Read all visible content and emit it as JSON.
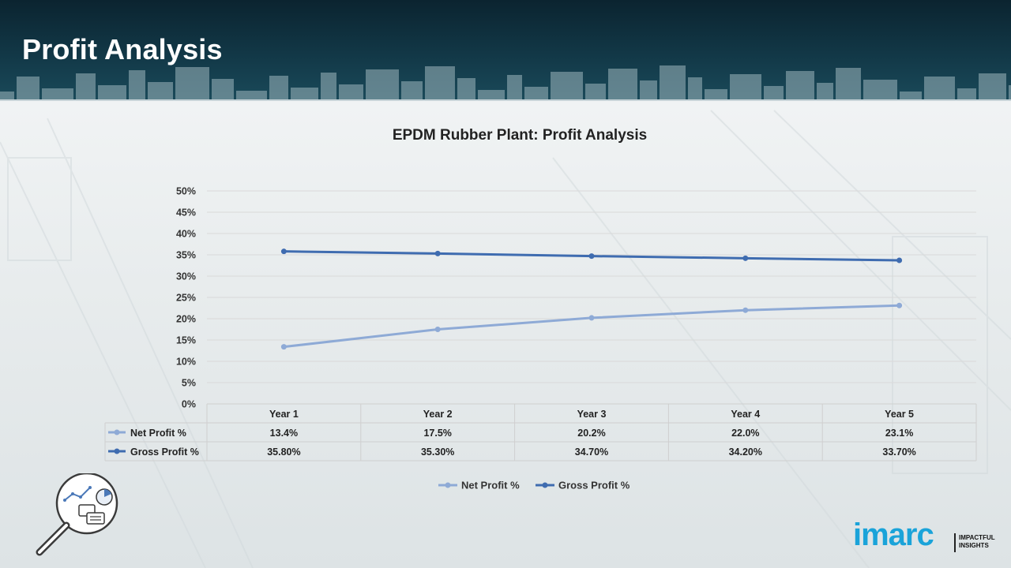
{
  "page": {
    "title": "Profit Analysis"
  },
  "colors": {
    "header_bg": "#123847",
    "net_profit": "#8eaad6",
    "gross_profit": "#3f6cb0",
    "grid": "#d9d9d9",
    "brand": "#1aa3d9"
  },
  "chart_data": {
    "type": "line",
    "title": "EPDM Rubber Plant: Profit Analysis",
    "categories": [
      "Year 1",
      "Year 2",
      "Year 3",
      "Year 4",
      "Year 5"
    ],
    "series": [
      {
        "name": "Net Profit %",
        "values": [
          13.4,
          17.5,
          20.2,
          22.0,
          23.1
        ],
        "labels": [
          "13.4%",
          "17.5%",
          "20.2%",
          "22.0%",
          "23.1%"
        ],
        "color": "#8eaad6"
      },
      {
        "name": "Gross Profit %",
        "values": [
          35.8,
          35.3,
          34.7,
          34.2,
          33.7
        ],
        "labels": [
          "35.80%",
          "35.30%",
          "34.70%",
          "34.20%",
          "33.70%"
        ],
        "color": "#3f6cb0"
      }
    ],
    "ylim": [
      0,
      50
    ],
    "yticks": [
      "0%",
      "5%",
      "10%",
      "15%",
      "20%",
      "25%",
      "30%",
      "35%",
      "40%",
      "45%",
      "50%"
    ],
    "xlabel": "",
    "ylabel": "",
    "grid": true,
    "data_table": true,
    "legend": "bottom"
  },
  "logo": {
    "name": "imarc",
    "tagline_line1": "IMPACTFUL",
    "tagline_line2": "INSIGHTS"
  },
  "decorations": {
    "magnifier": "magnifier-analytics-icon"
  }
}
